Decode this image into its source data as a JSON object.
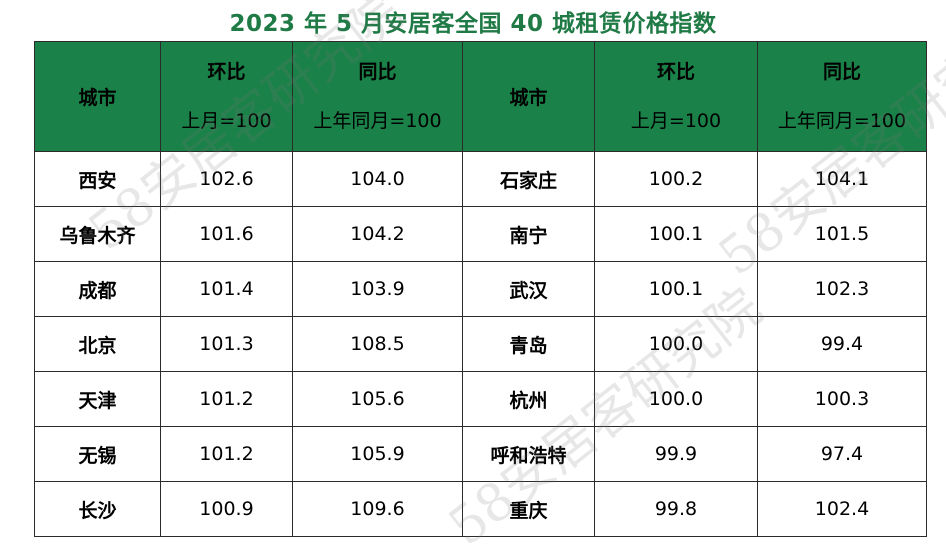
{
  "title": "2023 年 5 月安居客全国 40 城租赁价格指数",
  "watermark": "58安居客研究院",
  "header": {
    "left": {
      "city": "城市",
      "mom_line1": "环比",
      "mom_line2": "上月=100",
      "yoy_line1": "同比",
      "yoy_line2": "上年同月=100"
    },
    "right": {
      "city": "城市",
      "mom_line1": "环比",
      "mom_line2": "上月=100",
      "yoy_line1": "同比",
      "yoy_line2": "上年同月=100"
    }
  },
  "rows": [
    {
      "l_city": "西安",
      "l_mom": "102.6",
      "l_yoy": "104.0",
      "r_city": "石家庄",
      "r_mom": "100.2",
      "r_yoy": "104.1"
    },
    {
      "l_city": "乌鲁木齐",
      "l_mom": "101.6",
      "l_yoy": "104.2",
      "r_city": "南宁",
      "r_mom": "100.1",
      "r_yoy": "101.5"
    },
    {
      "l_city": "成都",
      "l_mom": "101.4",
      "l_yoy": "103.9",
      "r_city": "武汉",
      "r_mom": "100.1",
      "r_yoy": "102.3"
    },
    {
      "l_city": "北京",
      "l_mom": "101.3",
      "l_yoy": "108.5",
      "r_city": "青岛",
      "r_mom": "100.0",
      "r_yoy": "99.4"
    },
    {
      "l_city": "天津",
      "l_mom": "101.2",
      "l_yoy": "105.6",
      "r_city": "杭州",
      "r_mom": "100.0",
      "r_yoy": "100.3"
    },
    {
      "l_city": "无锡",
      "l_mom": "101.2",
      "l_yoy": "105.9",
      "r_city": "呼和浩特",
      "r_mom": "99.9",
      "r_yoy": "97.4"
    },
    {
      "l_city": "长沙",
      "l_mom": "100.9",
      "l_yoy": "109.6",
      "r_city": "重庆",
      "r_mom": "99.8",
      "r_yoy": "102.4"
    }
  ]
}
